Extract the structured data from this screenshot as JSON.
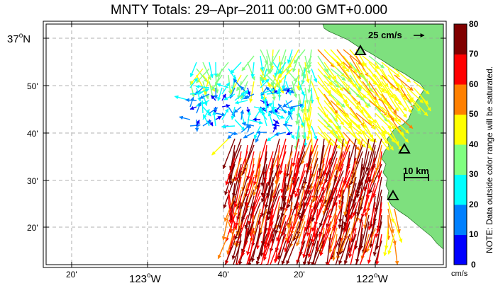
{
  "title": "MNTY Totals: 29–Apr–2011 00:00 GMT+0.000",
  "map": {
    "y_labels": {
      "top_deg": "37",
      "top_dir": "N",
      "m50": "50'",
      "m40": "40'",
      "m30": "30'",
      "m20": "20'"
    },
    "x_labels": {
      "m20": "20'",
      "w123_deg": "123",
      "w123_dir": "W",
      "m40": "40'",
      "m20b": "20'",
      "w122_deg": "122",
      "w122_dir": "W"
    },
    "scale_vector_label": "25 cm/s",
    "scale_bar_label": "10 km",
    "stations": [
      "station-north",
      "station-middle",
      "station-south"
    ],
    "land_color": "#7ee07e"
  },
  "colorbar": {
    "ticks": [
      "80",
      "70",
      "60",
      "50",
      "40",
      "30",
      "20",
      "10",
      "0"
    ],
    "unit": "cm/s",
    "note": "NOTE: Data outside color range will be saturated.",
    "colors": [
      "#0000ff",
      "#0080ff",
      "#00ffff",
      "#80ff80",
      "#ffff00",
      "#ff8000",
      "#ff0000",
      "#800000"
    ]
  }
}
